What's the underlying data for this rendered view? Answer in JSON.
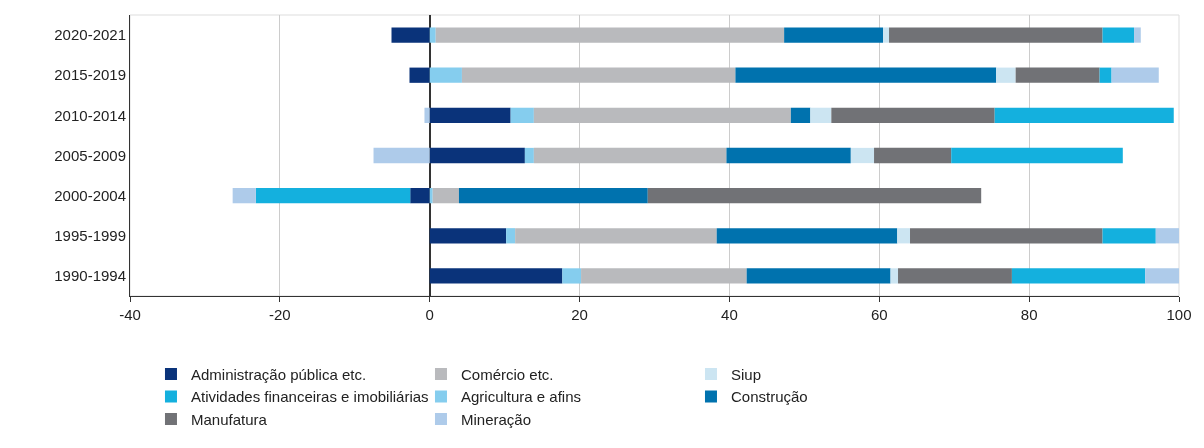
{
  "chart_data": {
    "type": "bar",
    "orientation": "horizontal",
    "stacked": true,
    "categories": [
      "2020-2021",
      "2015-2019",
      "2010-2014",
      "2005-2009",
      "2000-2004",
      "1995-1999",
      "1990-1994"
    ],
    "series": [
      {
        "name": "Administração pública etc.",
        "color": "#0a337a",
        "values": [
          -5.1,
          -2.7,
          10.8,
          12.7,
          -2.6,
          10.2,
          17.7
        ]
      },
      {
        "name": "Agricultura e afins",
        "color": "#85cdee",
        "values": [
          0.8,
          4.3,
          3.1,
          1.2,
          0.4,
          1.2,
          2.5
        ]
      },
      {
        "name": "Comércio etc.",
        "color": "#b9babd",
        "values": [
          46.5,
          36.5,
          34.3,
          25.7,
          3.5,
          26.9,
          22.1
        ]
      },
      {
        "name": "Construção",
        "color": "#0072ae",
        "values": [
          13.2,
          34.8,
          2.6,
          16.6,
          25.2,
          24.1,
          19.2
        ]
      },
      {
        "name": "Siup",
        "color": "#cce5f2",
        "values": [
          0.8,
          2.6,
          2.8,
          3.1,
          null,
          1.7,
          1.0
        ]
      },
      {
        "name": "Manufatura",
        "color": "#717276",
        "values": [
          28.5,
          11.2,
          21.8,
          10.3,
          44.5,
          25.7,
          15.2
        ]
      },
      {
        "name": "Atividades financeiras e imobiliárias",
        "color": "#14b0de",
        "values": [
          4.2,
          1.6,
          23.9,
          22.9,
          -20.6,
          7.1,
          17.8
        ]
      },
      {
        "name": "Mineração",
        "color": "#aecbea",
        "values": [
          0.9,
          6.3,
          -0.7,
          -7.5,
          -3.1,
          3.1,
          4.5
        ]
      }
    ],
    "xlim": [
      -40,
      100
    ],
    "xticks": [
      -40,
      -20,
      0,
      20,
      40,
      60,
      80,
      100
    ],
    "grid": "x",
    "legend": "bottom"
  }
}
